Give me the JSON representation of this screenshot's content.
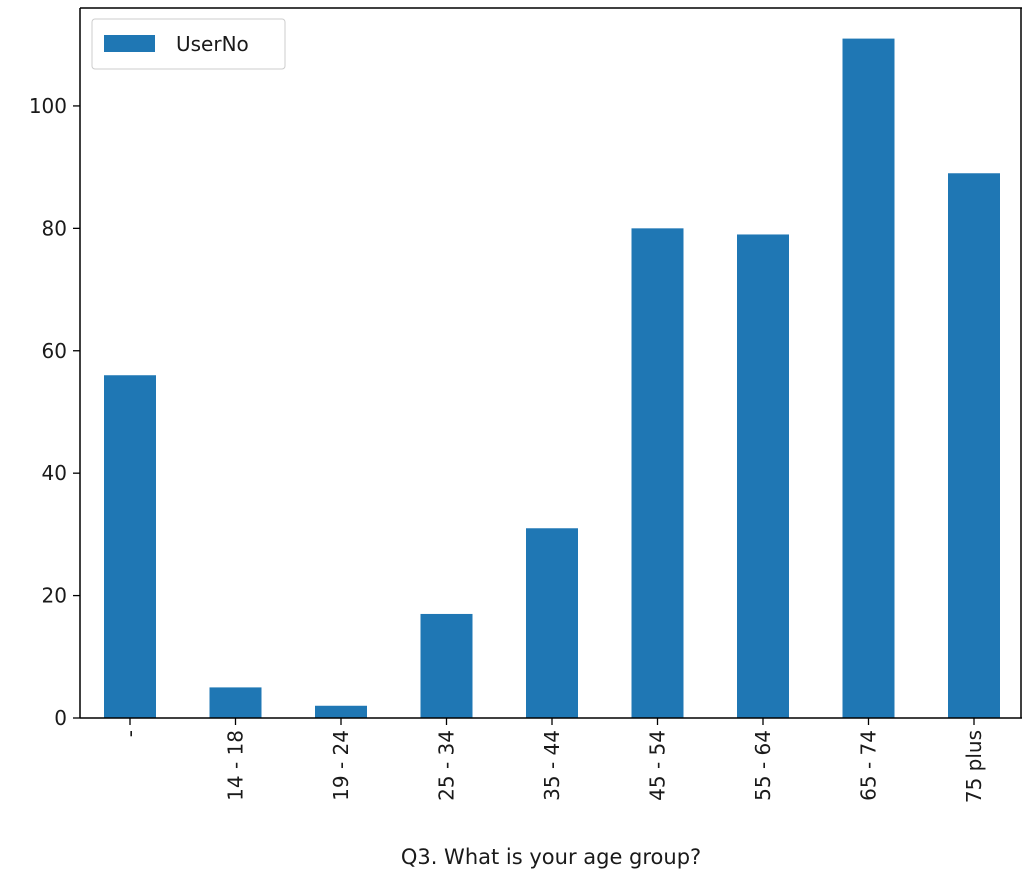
{
  "chart_data": {
    "type": "bar",
    "title": "",
    "xlabel": "Q3. What is your age group?",
    "ylabel": "",
    "categories": [
      "-",
      "14 - 18",
      "19 - 24",
      "25 - 34",
      "35 - 44",
      "45 - 54",
      "55 - 64",
      "65 - 74",
      "75 plus"
    ],
    "series": [
      {
        "name": "UserNo",
        "values": [
          56,
          5,
          2,
          17,
          31,
          80,
          79,
          111,
          89
        ],
        "color": "#1f77b4"
      }
    ],
    "ylim": [
      0,
      116
    ],
    "yticks": [
      0,
      20,
      40,
      60,
      80,
      100
    ],
    "grid": false,
    "legend_position": "top-left"
  }
}
